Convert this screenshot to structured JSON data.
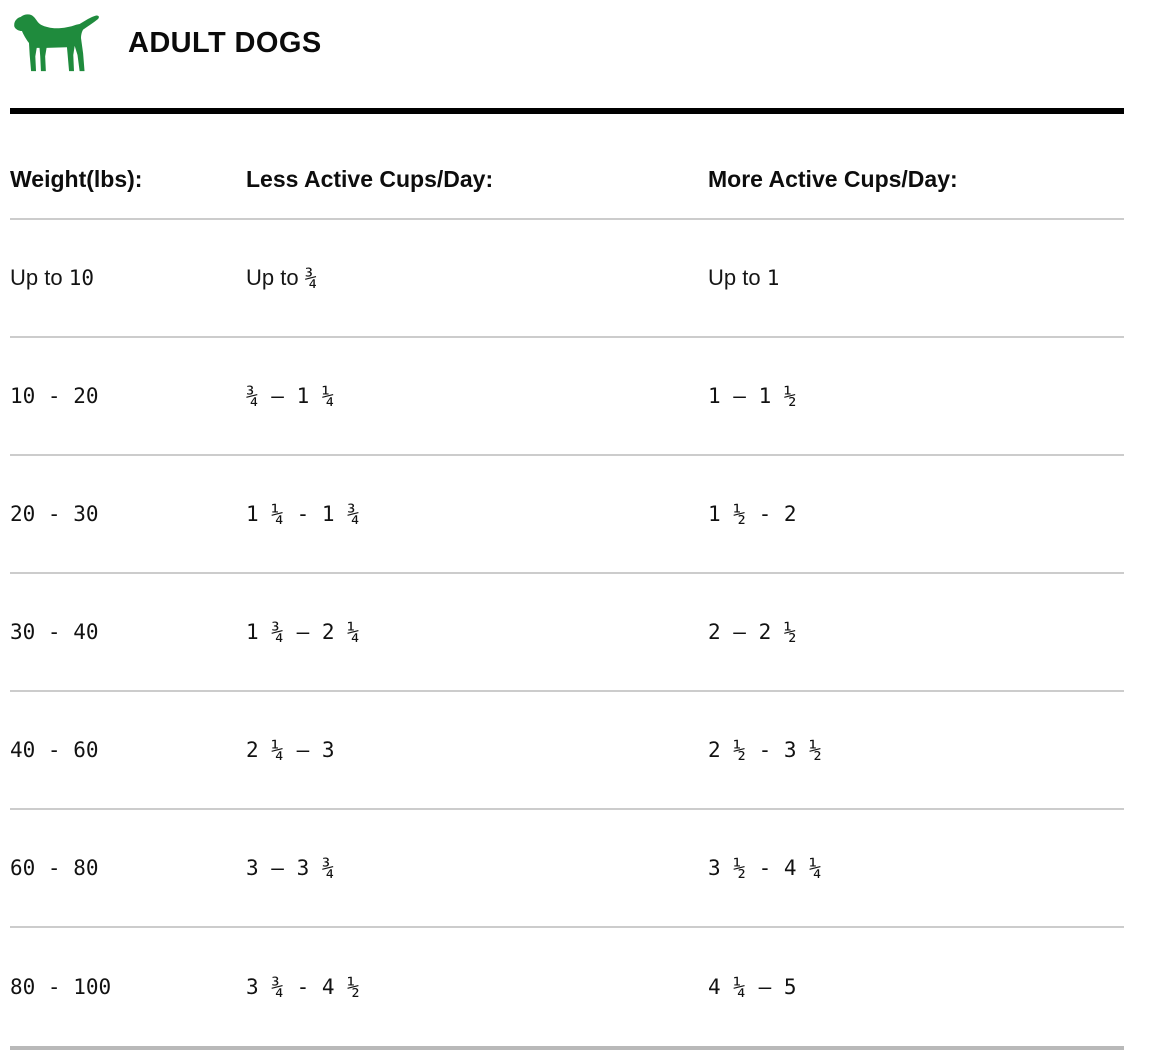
{
  "header": {
    "title": "ADULT DOGS",
    "icon": "dog-icon"
  },
  "colors": {
    "accent_green": "#1f8b3d",
    "heading_rule_black": "#000000",
    "row_separator_gray": "#cccccc",
    "bottom_rule_gray": "#b9b9b9",
    "text": "#161616"
  },
  "table": {
    "columns": [
      {
        "key": "weight",
        "label": "Weight(lbs):"
      },
      {
        "key": "less_active",
        "label": "Less Active Cups/Day:"
      },
      {
        "key": "more_active",
        "label": "More Active Cups/Day:"
      }
    ],
    "rows": [
      {
        "weight": {
          "label": "Up to ",
          "value": "10"
        },
        "less_active": {
          "label": "Up to ",
          "value": "¾"
        },
        "more_active": {
          "label": "Up to ",
          "value": "1"
        }
      },
      {
        "weight": {
          "label": "",
          "value": "10 - 20"
        },
        "less_active": {
          "label": "",
          "value": "¾ — 1 ¼"
        },
        "more_active": {
          "label": "",
          "value": "1 — 1 ½"
        }
      },
      {
        "weight": {
          "label": "",
          "value": "20 - 30"
        },
        "less_active": {
          "label": "",
          "value": "1 ¼ - 1 ¾"
        },
        "more_active": {
          "label": "",
          "value": "1 ½ - 2"
        }
      },
      {
        "weight": {
          "label": "",
          "value": "30 - 40"
        },
        "less_active": {
          "label": "",
          "value": "1 ¾ — 2 ¼"
        },
        "more_active": {
          "label": "",
          "value": "2 — 2 ½"
        }
      },
      {
        "weight": {
          "label": "",
          "value": "40 - 60"
        },
        "less_active": {
          "label": "",
          "value": "2 ¼ — 3"
        },
        "more_active": {
          "label": "",
          "value": "2 ½ - 3 ½"
        }
      },
      {
        "weight": {
          "label": "",
          "value": "60 - 80"
        },
        "less_active": {
          "label": "",
          "value": "3 — 3 ¾"
        },
        "more_active": {
          "label": "",
          "value": "3 ½ - 4 ¼"
        }
      },
      {
        "weight": {
          "label": "",
          "value": "80 - 100"
        },
        "less_active": {
          "label": "",
          "value": "3 ¾ - 4 ½"
        },
        "more_active": {
          "label": "",
          "value": "4 ¼ — 5"
        }
      }
    ]
  }
}
